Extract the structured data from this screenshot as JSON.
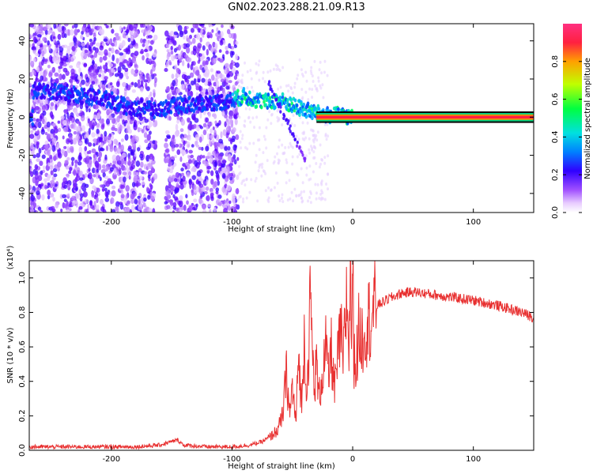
{
  "title": "GN02.2023.288.21.09.R13",
  "chart_data": [
    {
      "type": "heatmap",
      "xlabel": "Height of straight line (km)",
      "ylabel": "Frequency (Hz)",
      "xlim": [
        -268,
        150
      ],
      "ylim": [
        -50,
        49
      ],
      "xticks": [
        -200,
        -100,
        0,
        100
      ],
      "yticks": [
        -40,
        -20,
        0,
        20,
        40
      ],
      "colorbar": {
        "label": "Normalized spectral amplitude",
        "range": [
          0,
          1
        ],
        "ticks": [
          "0.0",
          "0.2",
          "0.4",
          "0.6",
          "0.8"
        ],
        "tick_values": [
          0.0,
          0.2,
          0.4,
          0.6,
          0.8
        ]
      },
      "ridge": {
        "x": [
          -265,
          -240,
          -220,
          -200,
          -190,
          -180,
          -170,
          -165,
          -150,
          -130,
          -110,
          -100,
          -90,
          -80,
          -70,
          -60,
          -50,
          -40,
          -30,
          -20,
          -10,
          0,
          150
        ],
        "y": [
          14,
          13,
          11,
          9,
          6,
          4,
          6,
          3,
          6,
          7,
          8,
          9,
          11,
          9,
          8,
          9,
          6,
          4,
          2,
          1,
          1,
          0,
          0
        ]
      }
    },
    {
      "type": "line",
      "xlabel": "Height of straight line (km)",
      "ylabel": "SNR (10 * v/v)",
      "y_multiplier": "(x10⁴)",
      "xlim": [
        -268,
        150
      ],
      "ylim": [
        0,
        1.1
      ],
      "xticks": [
        -200,
        -100,
        0,
        100
      ],
      "yticks": [
        "0.0",
        "0.2",
        "0.4",
        "0.6",
        "0.8",
        "1.0"
      ],
      "ytick_values": [
        0.0,
        0.2,
        0.4,
        0.6,
        0.8,
        1.0
      ],
      "series": [
        {
          "color": "#e83030",
          "x": [
            -268,
            -250,
            -220,
            -200,
            -180,
            -160,
            -150,
            -145,
            -140,
            -120,
            -100,
            -85,
            -75,
            -68,
            -62,
            -58,
            -55,
            -52,
            -50,
            -47,
            -45,
            -42,
            -40,
            -38,
            -35,
            -32,
            -30,
            -28,
            -25,
            -22,
            -20,
            -18,
            -15,
            -12,
            -10,
            -8,
            -5,
            -3,
            -2,
            -1,
            0,
            1,
            3,
            5,
            8,
            10,
            15,
            20,
            30,
            40,
            50,
            60,
            80,
            100,
            120,
            140,
            150
          ],
          "y": [
            0.02,
            0.02,
            0.02,
            0.02,
            0.02,
            0.03,
            0.05,
            0.06,
            0.03,
            0.02,
            0.02,
            0.03,
            0.05,
            0.08,
            0.12,
            0.2,
            0.45,
            0.2,
            0.38,
            0.15,
            0.55,
            0.25,
            0.7,
            0.3,
            0.88,
            0.35,
            0.5,
            0.3,
            0.45,
            0.6,
            0.4,
            0.6,
            0.35,
            0.55,
            0.7,
            0.5,
            0.9,
            0.6,
            1.05,
            0.7,
            1.1,
            0.55,
            0.5,
            0.68,
            0.65,
            0.72,
            0.78,
            0.84,
            0.88,
            0.91,
            0.92,
            0.91,
            0.89,
            0.87,
            0.84,
            0.8,
            0.77
          ]
        }
      ]
    }
  ]
}
